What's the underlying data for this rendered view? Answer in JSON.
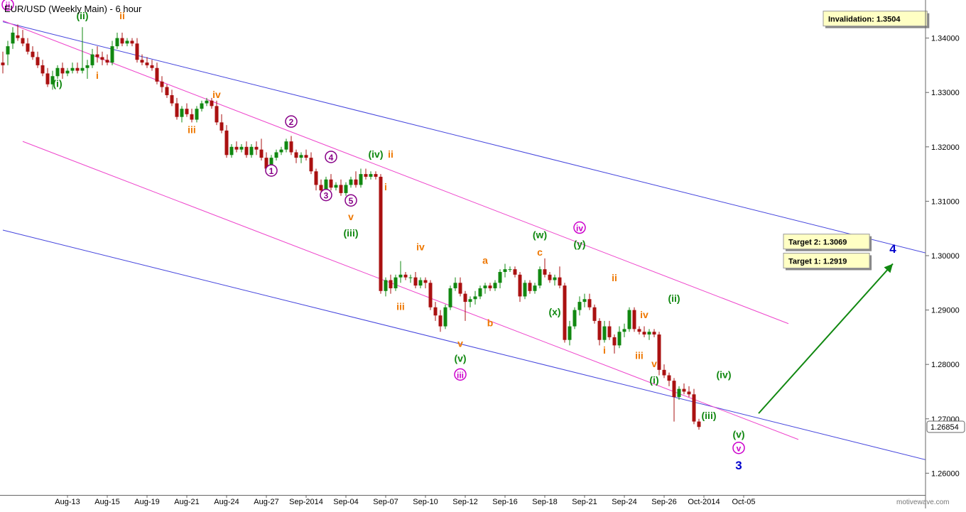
{
  "chart_data": {
    "type": "candlestick",
    "title": "EUR/USD (Weekly Main) - 6 hour",
    "watermark": "motivewave.com",
    "y_range": [
      1.256,
      1.347
    ],
    "y_ticks": [
      "1.34000",
      "1.33000",
      "1.32000",
      "1.31000",
      "1.30000",
      "1.29000",
      "1.28000",
      "1.27000",
      "1.26000"
    ],
    "last_price": "1.26854",
    "x_range": [
      0,
      200
    ],
    "x_ticks": [
      {
        "label": "Aug-13",
        "i": 13
      },
      {
        "label": "Aug-15",
        "i": 21
      },
      {
        "label": "Aug-19",
        "i": 29
      },
      {
        "label": "Aug-21",
        "i": 37
      },
      {
        "label": "Aug-24",
        "i": 45
      },
      {
        "label": "Aug-27",
        "i": 53
      },
      {
        "label": "Sep-2014",
        "i": 61
      },
      {
        "label": "Sep-04",
        "i": 69
      },
      {
        "label": "Sep-07",
        "i": 77
      },
      {
        "label": "Sep-10",
        "i": 85
      },
      {
        "label": "Sep-12",
        "i": 93
      },
      {
        "label": "Sep-16",
        "i": 101
      },
      {
        "label": "Sep-18",
        "i": 109
      },
      {
        "label": "Sep-21",
        "i": 117
      },
      {
        "label": "Sep-24",
        "i": 125
      },
      {
        "label": "Sep-26",
        "i": 133
      },
      {
        "label": "Oct-2014",
        "i": 141
      },
      {
        "label": "Oct-05",
        "i": 149
      }
    ],
    "candles": [
      [
        0,
        1.3355,
        1.3375,
        1.3335,
        1.335
      ],
      [
        1,
        1.337,
        1.3395,
        1.335,
        1.3385
      ],
      [
        2,
        1.339,
        1.342,
        1.338,
        1.341
      ],
      [
        3,
        1.3405,
        1.3425,
        1.3395,
        1.34
      ],
      [
        4,
        1.34,
        1.3415,
        1.3385,
        1.339
      ],
      [
        5,
        1.339,
        1.34,
        1.337,
        1.3375
      ],
      [
        6,
        1.3375,
        1.3385,
        1.336,
        1.3365
      ],
      [
        7,
        1.3365,
        1.3375,
        1.3345,
        1.335
      ],
      [
        8,
        1.335,
        1.336,
        1.333,
        1.3335
      ],
      [
        9,
        1.3335,
        1.3345,
        1.331,
        1.3315
      ],
      [
        10,
        1.3315,
        1.334,
        1.3305,
        1.333
      ],
      [
        11,
        1.333,
        1.335,
        1.3325,
        1.3345
      ],
      [
        12,
        1.3345,
        1.3355,
        1.3325,
        1.3335
      ],
      [
        13,
        1.3335,
        1.3345,
        1.333,
        1.334
      ],
      [
        14,
        1.334,
        1.3355,
        1.3335,
        1.3345
      ],
      [
        15,
        1.3345,
        1.3355,
        1.3335,
        1.334
      ],
      [
        16,
        1.334,
        1.342,
        1.3335,
        1.3345
      ],
      [
        17,
        1.3345,
        1.336,
        1.3325,
        1.335
      ],
      [
        18,
        1.335,
        1.338,
        1.3345,
        1.337
      ],
      [
        19,
        1.337,
        1.3385,
        1.3355,
        1.3365
      ],
      [
        20,
        1.3365,
        1.3375,
        1.335,
        1.336
      ],
      [
        21,
        1.336,
        1.337,
        1.335,
        1.3355
      ],
      [
        22,
        1.3355,
        1.3395,
        1.335,
        1.3385
      ],
      [
        23,
        1.3385,
        1.341,
        1.338,
        1.34
      ],
      [
        24,
        1.34,
        1.341,
        1.3385,
        1.339
      ],
      [
        25,
        1.339,
        1.34,
        1.3385,
        1.3395
      ],
      [
        26,
        1.3395,
        1.34,
        1.3385,
        1.339
      ],
      [
        27,
        1.339,
        1.34,
        1.3355,
        1.336
      ],
      [
        28,
        1.336,
        1.337,
        1.335,
        1.3355
      ],
      [
        29,
        1.3355,
        1.3365,
        1.3345,
        1.335
      ],
      [
        30,
        1.335,
        1.336,
        1.334,
        1.3345
      ],
      [
        31,
        1.3345,
        1.3355,
        1.3315,
        1.332
      ],
      [
        32,
        1.332,
        1.333,
        1.33,
        1.331
      ],
      [
        33,
        1.331,
        1.3315,
        1.329,
        1.3295
      ],
      [
        34,
        1.3295,
        1.3305,
        1.3275,
        1.328
      ],
      [
        35,
        1.328,
        1.329,
        1.325,
        1.3255
      ],
      [
        36,
        1.3255,
        1.3275,
        1.3245,
        1.327
      ],
      [
        37,
        1.327,
        1.328,
        1.3255,
        1.326
      ],
      [
        38,
        1.326,
        1.327,
        1.3245,
        1.325
      ],
      [
        39,
        1.325,
        1.3275,
        1.3245,
        1.327
      ],
      [
        40,
        1.327,
        1.3285,
        1.3265,
        1.328
      ],
      [
        41,
        1.328,
        1.329,
        1.3275,
        1.3285
      ],
      [
        42,
        1.3285,
        1.329,
        1.327,
        1.3275
      ],
      [
        43,
        1.3275,
        1.3285,
        1.324,
        1.3245
      ],
      [
        44,
        1.3245,
        1.326,
        1.3225,
        1.323
      ],
      [
        45,
        1.323,
        1.324,
        1.318,
        1.3185
      ],
      [
        46,
        1.3185,
        1.3205,
        1.318,
        1.32
      ],
      [
        47,
        1.32,
        1.321,
        1.319,
        1.3195
      ],
      [
        48,
        1.3195,
        1.3205,
        1.319,
        1.32
      ],
      [
        49,
        1.32,
        1.321,
        1.318,
        1.3185
      ],
      [
        50,
        1.3185,
        1.3205,
        1.318,
        1.32
      ],
      [
        51,
        1.32,
        1.321,
        1.3185,
        1.3195
      ],
      [
        52,
        1.3195,
        1.3215,
        1.3175,
        1.318
      ],
      [
        53,
        1.318,
        1.319,
        1.3155,
        1.316
      ],
      [
        54,
        1.316,
        1.3185,
        1.315,
        1.318
      ],
      [
        55,
        1.318,
        1.3195,
        1.3175,
        1.319
      ],
      [
        56,
        1.319,
        1.32,
        1.3185,
        1.3195
      ],
      [
        57,
        1.3195,
        1.3215,
        1.319,
        1.321
      ],
      [
        58,
        1.321,
        1.322,
        1.3185,
        1.319
      ],
      [
        59,
        1.319,
        1.3195,
        1.317,
        1.318
      ],
      [
        60,
        1.318,
        1.319,
        1.317,
        1.3185
      ],
      [
        61,
        1.3185,
        1.3195,
        1.3175,
        1.318
      ],
      [
        62,
        1.318,
        1.319,
        1.315,
        1.3155
      ],
      [
        63,
        1.3155,
        1.316,
        1.312,
        1.313
      ],
      [
        64,
        1.313,
        1.314,
        1.3115,
        1.312
      ],
      [
        65,
        1.312,
        1.3145,
        1.3115,
        1.314
      ],
      [
        66,
        1.314,
        1.315,
        1.312,
        1.3125
      ],
      [
        67,
        1.3125,
        1.3135,
        1.312,
        1.313
      ],
      [
        68,
        1.313,
        1.314,
        1.311,
        1.3115
      ],
      [
        69,
        1.3115,
        1.3135,
        1.311,
        1.313
      ],
      [
        70,
        1.313,
        1.3145,
        1.3125,
        1.314
      ],
      [
        71,
        1.314,
        1.3155,
        1.3125,
        1.313
      ],
      [
        72,
        1.313,
        1.316,
        1.3125,
        1.315
      ],
      [
        73,
        1.315,
        1.316,
        1.314,
        1.3145
      ],
      [
        74,
        1.3145,
        1.3155,
        1.314,
        1.315
      ],
      [
        75,
        1.315,
        1.3155,
        1.314,
        1.3145
      ],
      [
        76,
        1.3145,
        1.315,
        1.293,
        1.2935
      ],
      [
        77,
        1.2935,
        1.296,
        1.2925,
        1.2955
      ],
      [
        78,
        1.2955,
        1.2965,
        1.293,
        1.294
      ],
      [
        79,
        1.294,
        1.2965,
        1.2935,
        1.296
      ],
      [
        80,
        1.296,
        1.299,
        1.295,
        1.2965
      ],
      [
        81,
        1.2965,
        1.297,
        1.2955,
        1.296
      ],
      [
        82,
        1.296,
        1.2965,
        1.295,
        1.296
      ],
      [
        83,
        1.296,
        1.297,
        1.294,
        1.2945
      ],
      [
        84,
        1.2945,
        1.296,
        1.294,
        1.2955
      ],
      [
        85,
        1.2955,
        1.296,
        1.294,
        1.295
      ],
      [
        86,
        1.295,
        1.2955,
        1.29,
        1.2905
      ],
      [
        87,
        1.2905,
        1.2915,
        1.288,
        1.289
      ],
      [
        88,
        1.289,
        1.29,
        1.286,
        1.287
      ],
      [
        89,
        1.287,
        1.291,
        1.2865,
        1.2905
      ],
      [
        90,
        1.2905,
        1.2945,
        1.29,
        1.294
      ],
      [
        91,
        1.294,
        1.296,
        1.2935,
        1.295
      ],
      [
        92,
        1.295,
        1.296,
        1.2925,
        1.293
      ],
      [
        93,
        1.293,
        1.2935,
        1.288,
        1.2915
      ],
      [
        94,
        1.2915,
        1.2925,
        1.2905,
        1.292
      ],
      [
        95,
        1.292,
        1.2935,
        1.291,
        1.2925
      ],
      [
        96,
        1.2925,
        1.2945,
        1.292,
        1.294
      ],
      [
        97,
        1.294,
        1.295,
        1.293,
        1.2945
      ],
      [
        98,
        1.2945,
        1.295,
        1.2935,
        1.294
      ],
      [
        99,
        1.294,
        1.2955,
        1.2935,
        1.295
      ],
      [
        100,
        1.295,
        1.2975,
        1.294,
        1.297
      ],
      [
        101,
        1.297,
        1.2985,
        1.296,
        1.2975
      ],
      [
        102,
        1.2975,
        1.298,
        1.297,
        1.2975
      ],
      [
        103,
        1.2975,
        1.298,
        1.296,
        1.2965
      ],
      [
        104,
        1.2965,
        1.297,
        1.2915,
        1.2925
      ],
      [
        105,
        1.2925,
        1.2955,
        1.292,
        1.295
      ],
      [
        106,
        1.295,
        1.2955,
        1.293,
        1.2935
      ],
      [
        107,
        1.2935,
        1.295,
        1.293,
        1.2945
      ],
      [
        108,
        1.2945,
        1.298,
        1.294,
        1.2975
      ],
      [
        109,
        1.2975,
        1.2995,
        1.296,
        1.2965
      ],
      [
        110,
        1.2965,
        1.297,
        1.295,
        1.2955
      ],
      [
        111,
        1.2955,
        1.2965,
        1.2945,
        1.296
      ],
      [
        112,
        1.296,
        1.298,
        1.294,
        1.2945
      ],
      [
        113,
        1.2945,
        1.295,
        1.284,
        1.2845
      ],
      [
        114,
        1.2845,
        1.288,
        1.2835,
        1.287
      ],
      [
        115,
        1.287,
        1.2905,
        1.2865,
        1.29
      ],
      [
        116,
        1.29,
        1.2925,
        1.289,
        1.2915
      ],
      [
        117,
        1.2915,
        1.293,
        1.2905,
        1.292
      ],
      [
        118,
        1.292,
        1.293,
        1.29,
        1.2905
      ],
      [
        119,
        1.2905,
        1.291,
        1.2875,
        1.288
      ],
      [
        120,
        1.288,
        1.2885,
        1.2835,
        1.2845
      ],
      [
        121,
        1.2845,
        1.288,
        1.284,
        1.287
      ],
      [
        122,
        1.287,
        1.288,
        1.2845,
        1.285
      ],
      [
        123,
        1.285,
        1.2855,
        1.282,
        1.2835
      ],
      [
        124,
        1.2835,
        1.287,
        1.283,
        1.286
      ],
      [
        125,
        1.286,
        1.2875,
        1.285,
        1.2865
      ],
      [
        126,
        1.2865,
        1.2905,
        1.286,
        1.29
      ],
      [
        127,
        1.29,
        1.2905,
        1.286,
        1.2865
      ],
      [
        128,
        1.2865,
        1.287,
        1.2855,
        1.286
      ],
      [
        129,
        1.286,
        1.287,
        1.285,
        1.2855
      ],
      [
        130,
        1.2855,
        1.2865,
        1.2845,
        1.286
      ],
      [
        131,
        1.286,
        1.2865,
        1.285,
        1.2855
      ],
      [
        132,
        1.2855,
        1.286,
        1.278,
        1.279
      ],
      [
        133,
        1.279,
        1.28,
        1.2775,
        1.278
      ],
      [
        134,
        1.278,
        1.2785,
        1.276,
        1.277
      ],
      [
        135,
        1.277,
        1.2775,
        1.2695,
        1.274
      ],
      [
        136,
        1.274,
        1.276,
        1.2735,
        1.2755
      ],
      [
        137,
        1.2755,
        1.2765,
        1.2745,
        1.275
      ],
      [
        138,
        1.275,
        1.276,
        1.274,
        1.2745
      ],
      [
        139,
        1.2745,
        1.2755,
        1.269,
        1.2695
      ],
      [
        140,
        1.2695,
        1.27,
        1.268,
        1.2685
      ]
    ],
    "trend_lines": [
      {
        "color": "#4444dd",
        "x1": 0,
        "y1": 1.343,
        "x2": 200,
        "y2": 1.2972
      },
      {
        "color": "#4444dd",
        "x1": 0,
        "y1": 1.3047,
        "x2": 200,
        "y2": 1.2592
      },
      {
        "color": "#ee44cc",
        "x1": 0,
        "y1": 1.3432,
        "x2": 158,
        "y2": 1.2875
      },
      {
        "color": "#ee44cc",
        "x1": 4,
        "y1": 1.321,
        "x2": 160,
        "y2": 1.2662
      }
    ],
    "wave_labels": [
      {
        "t": "ii",
        "x": 1,
        "p": 1.3455,
        "c": "#cc00cc",
        "circle": true
      },
      {
        "t": "(ii)",
        "x": 16,
        "p": 1.3435,
        "c": "#118811"
      },
      {
        "t": "ii",
        "x": 24,
        "p": 1.3435,
        "c": "#ee7700"
      },
      {
        "t": "(i)",
        "x": 11,
        "p": 1.331,
        "c": "#118811"
      },
      {
        "t": "i",
        "x": 19,
        "p": 1.3325,
        "c": "#ee7700"
      },
      {
        "t": "iv",
        "x": 43,
        "p": 1.329,
        "c": "#ee7700"
      },
      {
        "t": "iii",
        "x": 38,
        "p": 1.3225,
        "c": "#ee7700"
      },
      {
        "t": "2",
        "x": 58,
        "p": 1.324,
        "c": "#880088",
        "circle": true
      },
      {
        "t": "1",
        "x": 54,
        "p": 1.315,
        "c": "#880088",
        "circle": true
      },
      {
        "t": "4",
        "x": 66,
        "p": 1.3175,
        "c": "#880088",
        "circle": true
      },
      {
        "t": "3",
        "x": 65,
        "p": 1.3105,
        "c": "#880088",
        "circle": true
      },
      {
        "t": "5",
        "x": 70,
        "p": 1.3095,
        "c": "#880088",
        "circle": true
      },
      {
        "t": "v",
        "x": 70,
        "p": 1.3065,
        "c": "#ee7700"
      },
      {
        "t": "(iii)",
        "x": 70,
        "p": 1.3035,
        "c": "#118811"
      },
      {
        "t": "(iv)",
        "x": 75,
        "p": 1.318,
        "c": "#118811"
      },
      {
        "t": "ii",
        "x": 78,
        "p": 1.318,
        "c": "#ee7700"
      },
      {
        "t": "i",
        "x": 77,
        "p": 1.312,
        "c": "#ee7700"
      },
      {
        "t": "iv",
        "x": 84,
        "p": 1.301,
        "c": "#ee7700"
      },
      {
        "t": "a",
        "x": 97,
        "p": 1.2985,
        "c": "#ee7700"
      },
      {
        "t": "iii",
        "x": 80,
        "p": 1.29,
        "c": "#ee7700"
      },
      {
        "t": "b",
        "x": 98,
        "p": 1.287,
        "c": "#ee7700"
      },
      {
        "t": "v",
        "x": 92,
        "p": 1.2832,
        "c": "#ee7700"
      },
      {
        "t": "(v)",
        "x": 92,
        "p": 1.2805,
        "c": "#118811"
      },
      {
        "t": "iii",
        "x": 92,
        "p": 1.2775,
        "c": "#cc00cc",
        "circle": true
      },
      {
        "t": "(w)",
        "x": 108,
        "p": 1.3032,
        "c": "#118811"
      },
      {
        "t": "c",
        "x": 108,
        "p": 1.3,
        "c": "#ee7700"
      },
      {
        "t": "iv",
        "x": 116,
        "p": 1.3045,
        "c": "#cc00cc",
        "circle": true
      },
      {
        "t": "(y)",
        "x": 116,
        "p": 1.3015,
        "c": "#118811"
      },
      {
        "t": "(x)",
        "x": 111,
        "p": 1.289,
        "c": "#118811"
      },
      {
        "t": "ii",
        "x": 123,
        "p": 1.2953,
        "c": "#ee7700"
      },
      {
        "t": "iv",
        "x": 129,
        "p": 1.2885,
        "c": "#ee7700"
      },
      {
        "t": "i",
        "x": 121,
        "p": 1.282,
        "c": "#ee7700"
      },
      {
        "t": "iii",
        "x": 128,
        "p": 1.281,
        "c": "#ee7700"
      },
      {
        "t": "v",
        "x": 131,
        "p": 1.2795,
        "c": "#ee7700"
      },
      {
        "t": "(i)",
        "x": 131,
        "p": 1.2765,
        "c": "#118811"
      },
      {
        "t": "(ii)",
        "x": 135,
        "p": 1.2915,
        "c": "#118811"
      },
      {
        "t": "(iv)",
        "x": 145,
        "p": 1.2775,
        "c": "#118811"
      },
      {
        "t": "(iii)",
        "x": 142,
        "p": 1.27,
        "c": "#118811"
      },
      {
        "t": "(v)",
        "x": 148,
        "p": 1.2665,
        "c": "#118811"
      },
      {
        "t": "v",
        "x": 148,
        "p": 1.264,
        "c": "#cc00cc",
        "circle": true
      },
      {
        "t": "3",
        "x": 148,
        "p": 1.2607,
        "c": "#0000cc",
        "big": true
      },
      {
        "t": "4",
        "x": 179,
        "p": 1.3005,
        "c": "#0000cc",
        "big": true
      }
    ],
    "info_boxes": [
      {
        "text": "Invalidation:  1.3504",
        "x": 165,
        "p": 1.343
      },
      {
        "text": "Target 2:  1.3069",
        "x": 157,
        "p": 1.302
      },
      {
        "text": "Target 1:  1.2919",
        "x": 157,
        "p": 1.2985
      }
    ],
    "arrow": {
      "x1": 152,
      "p1": 1.271,
      "x2": 179,
      "p2": 1.2985,
      "color": "#118811"
    }
  }
}
